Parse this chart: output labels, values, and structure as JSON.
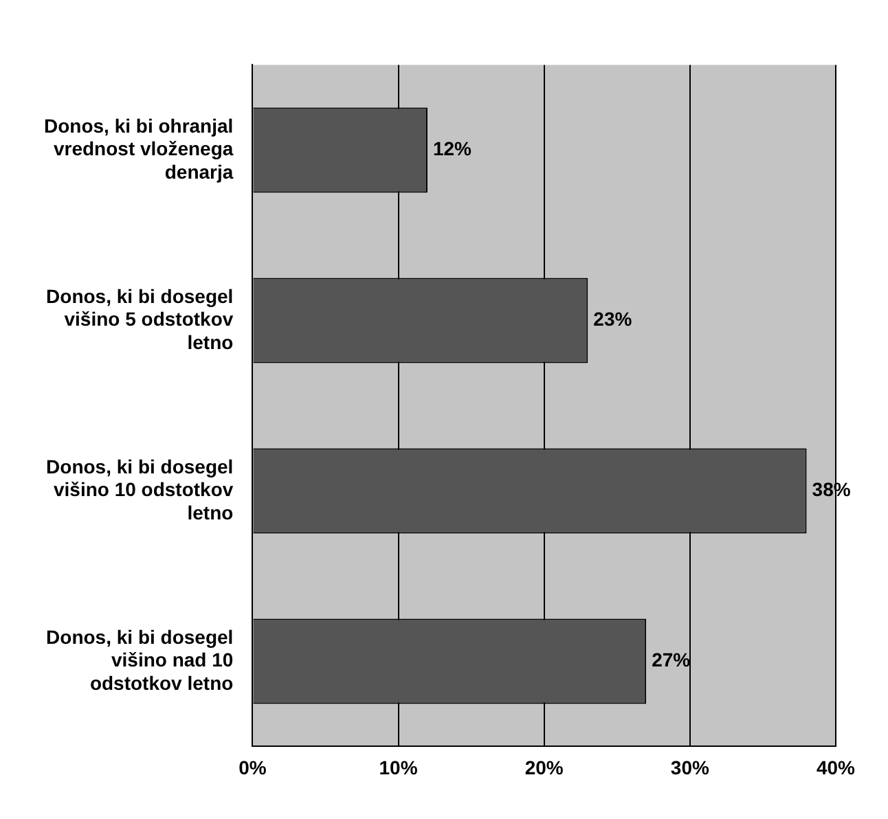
{
  "chart_data": {
    "type": "bar",
    "orientation": "horizontal",
    "categories": [
      "Donos, ki bi ohranjal vrednost vloženega denarja",
      "Donos, ki bi dosegel višino 5 odstotkov letno",
      "Donos, ki bi dosegel višino 10 odstotkov letno",
      "Donos, ki bi dosegel višino nad 10 odstotkov letno"
    ],
    "values": [
      12,
      23,
      38,
      27
    ],
    "value_labels": [
      "12%",
      "23%",
      "38%",
      "27%"
    ],
    "color": "#555555",
    "xlim": [
      0,
      40
    ],
    "xticks": [
      {
        "value": 0,
        "label": "0%"
      },
      {
        "value": 10,
        "label": "10%"
      },
      {
        "value": 20,
        "label": "20%"
      },
      {
        "value": 30,
        "label": "30%"
      },
      {
        "value": 40,
        "label": "40%"
      }
    ],
    "grid": "x"
  }
}
